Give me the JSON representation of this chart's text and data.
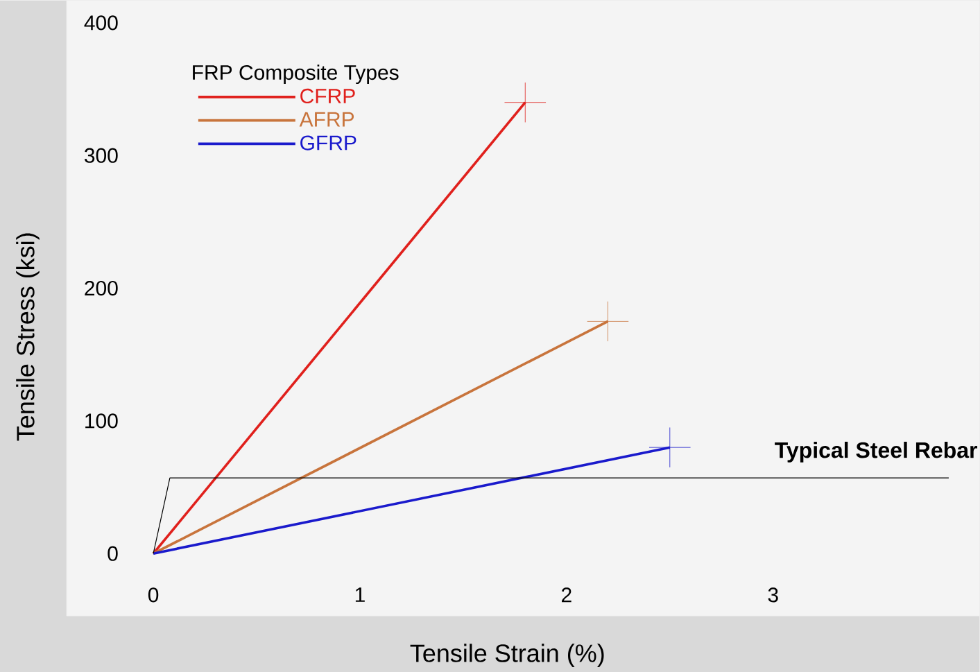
{
  "chart_data": {
    "type": "line",
    "xlabel": "Tensile Strain (%)",
    "ylabel": "Tensile Stress (ksi)",
    "legend_title": "FRP Composite Types",
    "xlim": [
      -0.42,
      4.0
    ],
    "ylim": [
      -47,
      417
    ],
    "xticks": [
      0,
      1,
      2,
      3
    ],
    "yticks": [
      0,
      100,
      200,
      300,
      400
    ],
    "grid": false,
    "legend": "top left",
    "series": [
      {
        "name": "CFRP",
        "color": "#e0201c",
        "x": [
          0,
          1.8
        ],
        "values": [
          0,
          340
        ],
        "errors": [
          null,
          15
        ],
        "xerrors": [
          null,
          0.1
        ]
      },
      {
        "name": "AFRP",
        "color": "#c8743c",
        "x": [
          0,
          2.2
        ],
        "values": [
          0,
          175
        ],
        "errors": [
          null,
          15
        ],
        "xerrors": [
          null,
          0.1
        ]
      },
      {
        "name": "GFRP",
        "color": "#1a1acc",
        "x": [
          0,
          2.5
        ],
        "values": [
          0,
          80
        ],
        "errors": [
          null,
          15
        ],
        "xerrors": [
          null,
          0.1
        ]
      },
      {
        "name": "Typical Steel Rebar",
        "color": "#000000",
        "x": [
          0,
          0.08,
          3.85
        ],
        "values": [
          0,
          57,
          57
        ]
      }
    ]
  }
}
